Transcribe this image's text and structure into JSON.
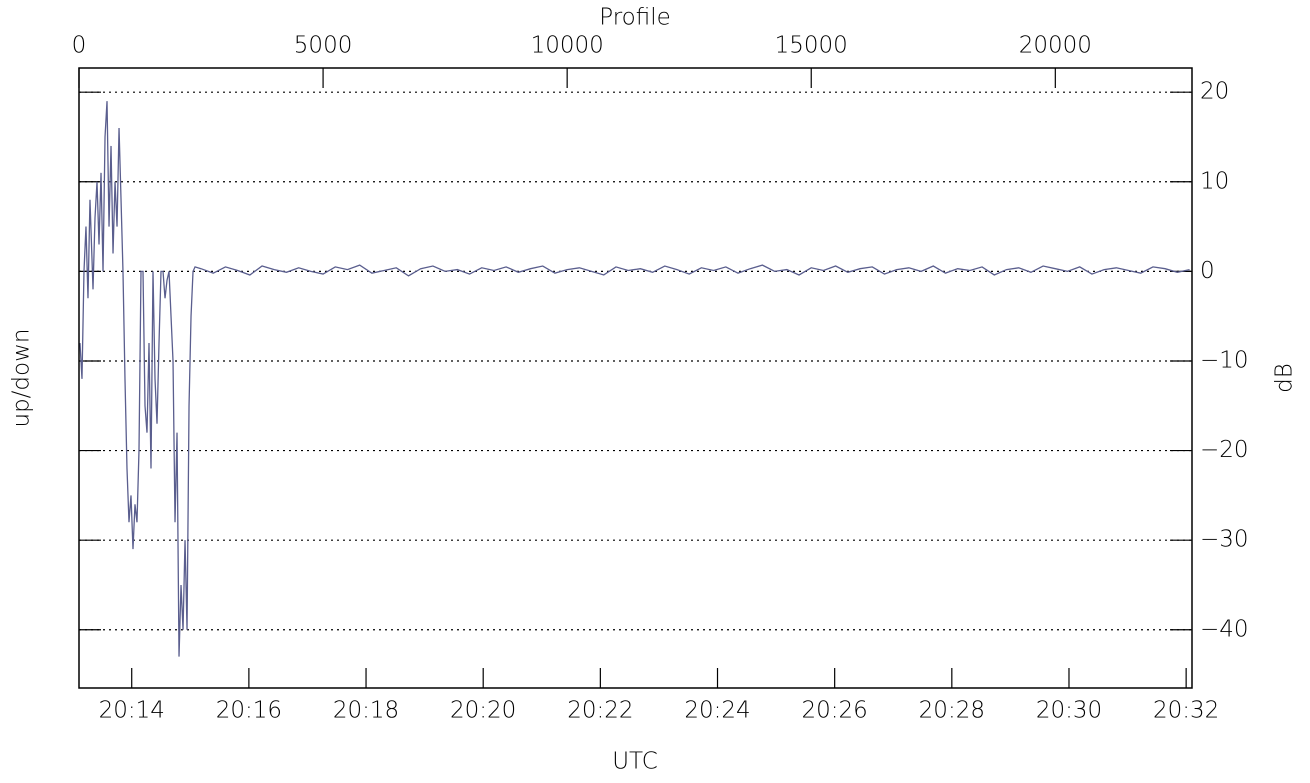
{
  "chart_data": {
    "type": "line",
    "xlabel": "Profile",
    "x2label": "UTC",
    "ylabel": "up/down",
    "y2label": "dB",
    "color": "#5a5e8e",
    "grid": true,
    "xlim": [
      0,
      22800
    ],
    "xticks": [
      0,
      5000,
      10000,
      15000,
      20000
    ],
    "x2lim": [
      1213.1,
      1232.1
    ],
    "x2ticks": [
      {
        "value": 1214,
        "label": "20:14"
      },
      {
        "value": 1216,
        "label": "20:16"
      },
      {
        "value": 1218,
        "label": "20:18"
      },
      {
        "value": 1220,
        "label": "20:20"
      },
      {
        "value": 1222,
        "label": "20:22"
      },
      {
        "value": 1224,
        "label": "20:24"
      },
      {
        "value": 1226,
        "label": "20:26"
      },
      {
        "value": 1228,
        "label": "20:28"
      },
      {
        "value": 1230,
        "label": "20:30"
      },
      {
        "value": 1232,
        "label": "20:32"
      }
    ],
    "ylim": [
      -46.5,
      22.7
    ],
    "yticks": [
      {
        "value": -40,
        "label": "−40"
      },
      {
        "value": -30,
        "label": "−30"
      },
      {
        "value": -20,
        "label": "−20"
      },
      {
        "value": -10,
        "label": "−10"
      },
      0,
      10,
      20
    ],
    "x": [
      20,
      61,
      102,
      143,
      184,
      225,
      287,
      328,
      369,
      410,
      451,
      492,
      533,
      574,
      615,
      656,
      697,
      738,
      779,
      820,
      861,
      901,
      942,
      983,
      1024,
      1065,
      1106,
      1147,
      1188,
      1229,
      1270,
      1311,
      1352,
      1393,
      1434,
      1475,
      1516,
      1557,
      1598,
      1639,
      1680,
      1721,
      1762,
      1803,
      1844,
      1885,
      1926,
      1967,
      2008,
      2049,
      2090,
      2131,
      2172,
      2213,
      2254,
      2295,
      2336,
      2377,
      2500,
      2750,
      3000,
      3250,
      3500,
      3750,
      4000,
      4250,
      4500,
      4750,
      5000,
      5250,
      5500,
      5750,
      6000,
      6250,
      6500,
      6750,
      7000,
      7250,
      7500,
      7750,
      8000,
      8250,
      8500,
      8750,
      9000,
      9250,
      9500,
      9750,
      10000,
      10250,
      10500,
      10750,
      11000,
      11250,
      11500,
      11750,
      12000,
      12250,
      12500,
      12750,
      13000,
      13250,
      13500,
      13750,
      14000,
      14250,
      14500,
      14750,
      15000,
      15250,
      15500,
      15750,
      16000,
      16250,
      16500,
      16750,
      17000,
      17250,
      17500,
      17750,
      18000,
      18250,
      18500,
      18750,
      19000,
      19250,
      19500,
      19750,
      20000,
      20250,
      20500,
      20750,
      21000,
      21250,
      21500,
      21750,
      22000,
      22250,
      22500,
      22750
    ],
    "values": [
      -8,
      -12,
      0,
      5,
      -3,
      8,
      -2,
      6,
      10,
      3,
      11,
      0,
      15,
      19,
      5,
      14,
      2,
      10,
      5,
      16,
      8,
      0,
      -12,
      -22,
      -28,
      -25,
      -31,
      -26,
      -28,
      -20,
      0,
      0,
      -15,
      -18,
      -8,
      -22,
      0,
      -12,
      -17,
      -8,
      0,
      0,
      -3,
      -1,
      0,
      -5,
      -10,
      -28,
      -18,
      -43,
      -35,
      -40,
      -30,
      -40,
      -15,
      -5,
      0,
      0.5,
      0.3,
      -0.2,
      0.5,
      0.1,
      -0.4,
      0.6,
      0.2,
      -0.1,
      0.4,
      0.0,
      -0.3,
      0.5,
      0.2,
      0.7,
      -0.2,
      0.1,
      0.4,
      -0.5,
      0.3,
      0.6,
      0.0,
      0.2,
      -0.3,
      0.4,
      0.1,
      0.5,
      -0.1,
      0.3,
      0.6,
      -0.2,
      0.2,
      0.4,
      0.0,
      -0.4,
      0.5,
      0.1,
      0.3,
      -0.1,
      0.6,
      0.2,
      -0.3,
      0.4,
      0.1,
      0.5,
      -0.2,
      0.3,
      0.7,
      0.0,
      0.2,
      -0.4,
      0.4,
      0.1,
      0.6,
      -0.1,
      0.3,
      0.5,
      -0.3,
      0.2,
      0.4,
      0.0,
      0.6,
      -0.2,
      0.3,
      0.1,
      0.5,
      -0.4,
      0.2,
      0.4,
      -0.1,
      0.6,
      0.3,
      0.0,
      0.5,
      -0.3,
      0.2,
      0.4,
      0.1,
      -0.2,
      0.5,
      0.3,
      -0.1,
      0.2
    ]
  }
}
